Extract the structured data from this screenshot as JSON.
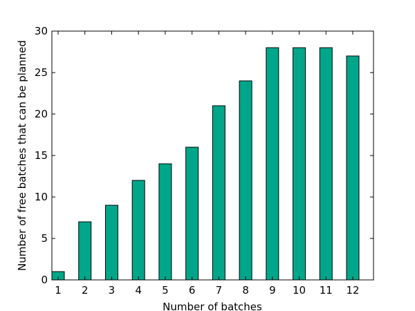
{
  "chart_data": {
    "type": "bar",
    "x_label": "Number of batches",
    "y_label": "Number of free batches that can be planned",
    "categories": [
      "1",
      "2",
      "3",
      "4",
      "5",
      "6",
      "7",
      "8",
      "9",
      "10",
      "11",
      "12"
    ],
    "values": [
      1,
      7,
      9,
      12,
      14,
      16,
      21,
      24,
      28,
      28,
      28,
      27
    ],
    "color": "#00a68a",
    "ylim": [
      0,
      30
    ],
    "yticks": [
      0,
      5,
      10,
      15,
      20,
      25,
      30
    ],
    "grid": false
  }
}
